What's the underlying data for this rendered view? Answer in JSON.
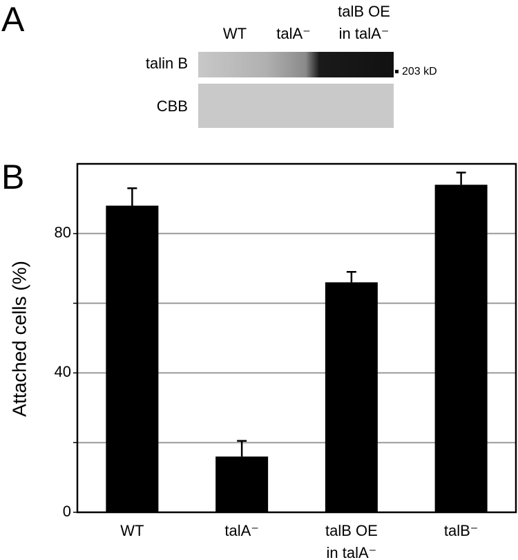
{
  "panel_a": {
    "label": "A",
    "lanes": [
      "WT",
      "talA⁻",
      "talB OE in talA⁻"
    ],
    "rows": [
      "talin B",
      "CBB"
    ],
    "marker": "203 kD"
  },
  "chart_data": {
    "type": "bar",
    "panel_label": "B",
    "ylabel": "Attached cells (%)",
    "categories": [
      "WT",
      "talA⁻",
      "talB OE in talA⁻",
      "talB⁻"
    ],
    "values": [
      88,
      16,
      66,
      94
    ],
    "errors": [
      5,
      4.5,
      3,
      3.5
    ],
    "color": "#000000",
    "ylim": [
      0,
      100
    ],
    "yticks": [
      0,
      {
        "value": 20,
        "label": null
      },
      40,
      {
        "value": 60,
        "label": null
      },
      80
    ],
    "grid": true
  }
}
